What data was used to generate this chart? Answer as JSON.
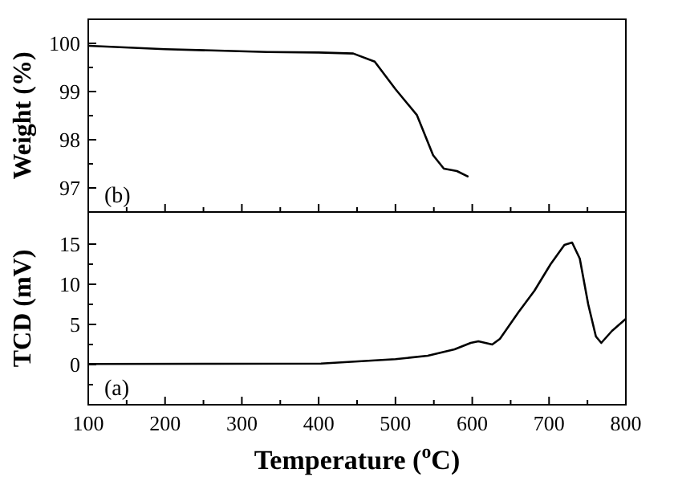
{
  "chart_data": [
    {
      "type": "line",
      "ylabel": "Weight (%)",
      "annotations": [
        "(b)"
      ],
      "tick_labels": "y",
      "grid": false,
      "xlim": [
        100,
        800
      ],
      "xticks": [
        100,
        {
          "value": 150,
          "label": null
        },
        200,
        {
          "value": 250,
          "label": null
        },
        300,
        {
          "value": 350,
          "label": null
        },
        400,
        {
          "value": 450,
          "label": null
        },
        500,
        {
          "value": 550,
          "label": null
        },
        600,
        {
          "value": 650,
          "label": null
        },
        700,
        {
          "value": 750,
          "label": null
        },
        800
      ],
      "ylim": [
        96.5,
        100.5
      ],
      "yticks": [
        97,
        {
          "value": 97.5,
          "label": null
        },
        98,
        {
          "value": 98.5,
          "label": null
        },
        99,
        {
          "value": 99.5,
          "label": null
        },
        100
      ],
      "series": [
        {
          "color": "#000000",
          "x": [
            100,
            200,
            333,
            400,
            445,
            473,
            500,
            528,
            549,
            563,
            580,
            595
          ],
          "values": [
            99.95,
            99.88,
            99.82,
            99.81,
            99.79,
            99.62,
            99.05,
            98.51,
            97.68,
            97.4,
            97.35,
            97.23
          ]
        }
      ]
    },
    {
      "type": "line",
      "xlabel": "Temperature ($^{o}$C)",
      "ylabel": "TCD (mV)",
      "annotations": [
        "(a)"
      ],
      "grid": false,
      "xlim": [
        100,
        800
      ],
      "xticks": [
        100,
        {
          "value": 150,
          "label": null
        },
        200,
        {
          "value": 250,
          "label": null
        },
        300,
        {
          "value": 350,
          "label": null
        },
        400,
        {
          "value": 450,
          "label": null
        },
        500,
        {
          "value": 550,
          "label": null
        },
        600,
        {
          "value": 650,
          "label": null
        },
        700,
        {
          "value": 750,
          "label": null
        },
        800
      ],
      "ylim": [
        -5,
        19
      ],
      "yticks": [
        {
          "value": -2.5,
          "label": null
        },
        0,
        {
          "value": 2.5,
          "label": null
        },
        5,
        {
          "value": 7.5,
          "label": null
        },
        10,
        {
          "value": 12.5,
          "label": null
        },
        15
      ],
      "series": [
        {
          "color": "#000000",
          "x": [
            100,
            264,
            403,
            500,
            542,
            577,
            598,
            608,
            626,
            636,
            660,
            681,
            702,
            720,
            730,
            740,
            751,
            761,
            768,
            782,
            800
          ],
          "values": [
            0.07,
            0.1,
            0.13,
            0.67,
            1.1,
            1.9,
            2.7,
            2.9,
            2.5,
            3.2,
            6.5,
            9.2,
            12.5,
            14.9,
            15.2,
            13.2,
            7.5,
            3.5,
            2.7,
            4.2,
            5.7
          ]
        }
      ]
    }
  ]
}
